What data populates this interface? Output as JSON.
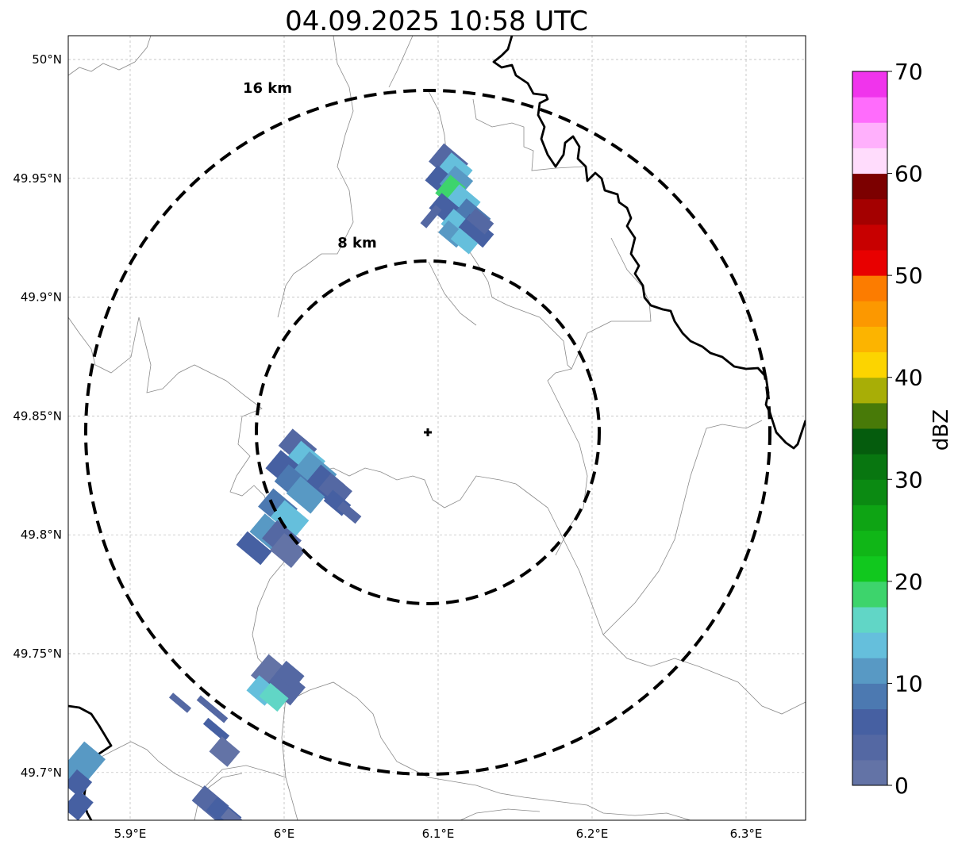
{
  "title": "04.09.2025 10:58 UTC",
  "map": {
    "lon_ticks": [
      {
        "value": 5.9,
        "label": "5.9°E"
      },
      {
        "value": 6.0,
        "label": "6°E"
      },
      {
        "value": 6.1,
        "label": "6.1°E"
      },
      {
        "value": 6.2,
        "label": "6.2°E"
      },
      {
        "value": 6.3,
        "label": "6.3°E"
      }
    ],
    "lat_ticks": [
      {
        "value": 50.0,
        "label": "50°N"
      },
      {
        "value": 49.95,
        "label": "49.95°N"
      },
      {
        "value": 49.9,
        "label": "49.9°N"
      },
      {
        "value": 49.85,
        "label": "49.85°N"
      },
      {
        "value": 49.8,
        "label": "49.8°N"
      },
      {
        "value": 49.75,
        "label": "49.75°N"
      },
      {
        "value": 49.7,
        "label": "49.7°N"
      }
    ],
    "range_rings": [
      {
        "label": "8 km",
        "radius_km": 8
      },
      {
        "label": "16 km",
        "radius_km": 16
      }
    ],
    "radar_site": {
      "lon": 6.096,
      "lat": 49.843
    }
  },
  "colorbar": {
    "label": "dBZ",
    "ticks": [
      "0",
      "10",
      "20",
      "30",
      "40",
      "50",
      "60",
      "70"
    ],
    "colors": [
      "#6373a6",
      "#5468a3",
      "#4660a2",
      "#4c79b1",
      "#5899c4",
      "#65bfdc",
      "#61d6c6",
      "#3dd46c",
      "#11c81e",
      "#10b617",
      "#0ea414",
      "#0b8a12",
      "#087610",
      "#055c0d",
      "#487a08",
      "#a8ae06",
      "#fcd400",
      "#fcb400",
      "#fc9800",
      "#fc7c00",
      "#e80000",
      "#c80000",
      "#a40000",
      "#7c0000",
      "#ffdcfc",
      "#ffb0fc",
      "#ff6cfc",
      "#f034ec"
    ]
  },
  "echoes": [
    {
      "name": "echo-north",
      "color": "#5468a3"
    },
    {
      "name": "echo-west",
      "color": "#4660a2"
    },
    {
      "name": "echo-southwest",
      "color": "#6373a6"
    }
  ]
}
